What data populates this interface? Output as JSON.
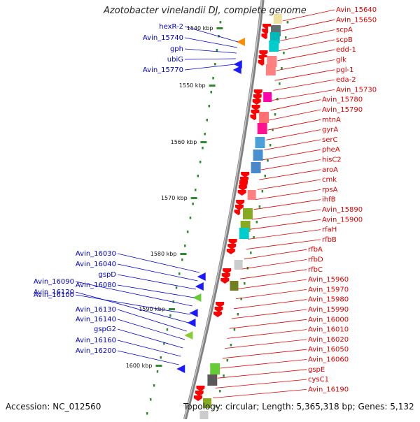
{
  "title": "Azotobacter vinelandii DJ, complete genome",
  "accession": "Accession: NC_012560",
  "topology": "Topology: circular; Length: 5,365,318 bp; Genes: 5,132",
  "colors": {
    "right_labels": "#e00000",
    "left_labels": "#0000cc",
    "backbone": "#808080",
    "ruler_tick": "#2e8b2e"
  },
  "ruler": [
    "1540 kbp",
    "1550 kbp",
    "1560 kbp",
    "1570 kbp",
    "1580 kbp",
    "1590 kbp",
    "1600 kbp"
  ],
  "right_labels": [
    "Avin_15640",
    "Avin_15650",
    "scpA",
    "scpB",
    "edd-1",
    "glk",
    "pgl-1",
    "eda-2",
    "Avin_15730",
    "Avin_15780",
    "Avin_15790",
    "mtnA",
    "gyrA",
    "serC",
    "pheA",
    "hisC2",
    "aroA",
    "cmk",
    "rpsA",
    "ihfB",
    "Avin_15890",
    "Avin_15900",
    "rfaH",
    "rfbB",
    "rfbA",
    "rfbD",
    "rfbC",
    "Avin_15960",
    "Avin_15970",
    "Avin_15980",
    "Avin_15990",
    "Avin_16000",
    "Avin_16010",
    "Avin_16020",
    "Avin_16050",
    "Avin_16060",
    "gspE",
    "cysC1",
    "Avin_16190"
  ],
  "left_labels": [
    "hexR-2",
    "Avin_15740",
    "gph",
    "ubiG",
    "Avin_15770",
    "Avin_16030",
    "Avin_16040",
    "gspD",
    "Avin_16080",
    "Avin_16090",
    "Avin_16100",
    "Avin_16120",
    "Avin_16130",
    "Avin_16140",
    "gspG2",
    "Avin_16160",
    "Avin_16200"
  ]
}
